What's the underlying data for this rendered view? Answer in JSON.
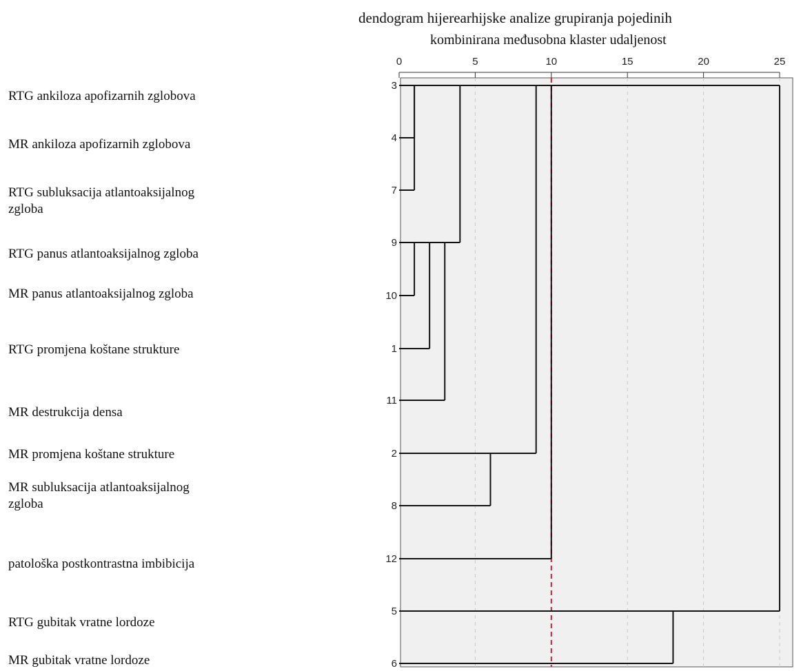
{
  "chart_data": {
    "type": "dendrogram",
    "title": "dendogram hijerearhijske analize grupiranja pojedinih",
    "xlabel": "kombinirana međusobna klaster udaljenost",
    "xlim": [
      0,
      25
    ],
    "xticks": [
      0,
      5,
      10,
      15,
      20,
      25
    ],
    "cut_line": 10,
    "leaf_order": [
      3,
      4,
      7,
      9,
      10,
      1,
      11,
      2,
      8,
      12,
      5,
      6
    ],
    "row_labels": [
      "RTG ankiloza apofizarnih zglobova",
      "MR ankiloza apofizarnih zglobova",
      "RTG subluksacija atlantoaksijalnog\n zgloba",
      "RTG panus atlantoaksijalnog zgloba",
      "MR panus atlantoaksijalnog zgloba",
      "RTG promjena koštane strukture",
      "MR destrukcija densa",
      "MR promjena koštane strukture",
      "MR subluksacija atlantoaksijalnog\n zgloba",
      "patološka postkontrastna imbibicija",
      "RTG gubitak vratne lordoze",
      "MR gubitak vratne lordoze"
    ],
    "merges": [
      {
        "left": "L3",
        "right": "L4",
        "height": 1
      },
      {
        "left": "M1",
        "right": "L7",
        "height": 1
      },
      {
        "left": "L9",
        "right": "L10",
        "height": 1
      },
      {
        "left": "M3",
        "right": "L1",
        "height": 2
      },
      {
        "left": "M4",
        "right": "L11",
        "height": 3
      },
      {
        "left": "M2",
        "right": "M5",
        "height": 4
      },
      {
        "left": "L2",
        "right": "L8",
        "height": 6
      },
      {
        "left": "M6",
        "right": "M7",
        "height": 9
      },
      {
        "left": "M8",
        "right": "L12",
        "height": 10
      },
      {
        "left": "L5",
        "right": "L6",
        "height": 18
      },
      {
        "left": "M9",
        "right": "M10",
        "height": 25
      }
    ]
  }
}
